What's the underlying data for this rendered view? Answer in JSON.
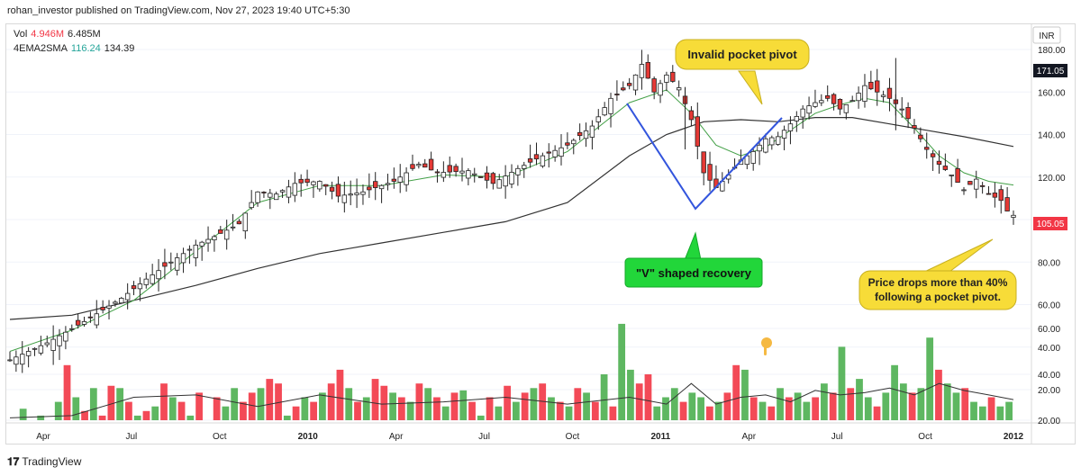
{
  "header": {
    "published": "rohan_investor published on TradingView.com, Nov 27, 2023 19:40 UTC+5:30"
  },
  "legend": {
    "vol_label": "Vol",
    "vol_value": "4.946M",
    "vol_ma": "6.485M",
    "ma_label": "4EMA2SMA",
    "ma_short": "116.24",
    "ma_long": "134.39"
  },
  "price_axis": {
    "currency": "INR"
  },
  "footer": {
    "brand": "TradingView"
  },
  "colors": {
    "up": "#4caf50",
    "down": "#f23645",
    "ema": "#43a047",
    "sma": "#333333",
    "annotation": "#f7dc38",
    "recovery": "#22d63a",
    "v_line": "#3355dd"
  },
  "chart_data": {
    "type": "candlestick",
    "title": "",
    "price_axis": {
      "range": [
        15,
        180
      ],
      "ticks": [
        20,
        40,
        60,
        80,
        100,
        120,
        140,
        160,
        180
      ],
      "current_price": 105.05,
      "marked_high": 171.05
    },
    "time_axis": {
      "labels": [
        "Apr",
        "Jul",
        "Oct",
        "2010",
        "Apr",
        "Jul",
        "Oct",
        "2011",
        "Apr",
        "Jul",
        "Oct",
        "2012"
      ],
      "bold": [
        "2010",
        "2011",
        "2012"
      ]
    },
    "close_path": [
      [
        0,
        34
      ],
      [
        6,
        42
      ],
      [
        12,
        52
      ],
      [
        18,
        63
      ],
      [
        22,
        72
      ],
      [
        26,
        80
      ],
      [
        30,
        88
      ],
      [
        33,
        92
      ],
      [
        37,
        98
      ],
      [
        40,
        113
      ],
      [
        43,
        112
      ],
      [
        46,
        117
      ],
      [
        50,
        118
      ],
      [
        53,
        111
      ],
      [
        57,
        113
      ],
      [
        62,
        118
      ],
      [
        66,
        126
      ],
      [
        69,
        122
      ],
      [
        74,
        123
      ],
      [
        78,
        117
      ],
      [
        82,
        124
      ],
      [
        86,
        130
      ],
      [
        90,
        135
      ],
      [
        94,
        144
      ],
      [
        97,
        157
      ],
      [
        100,
        163
      ],
      [
        102,
        173
      ],
      [
        104,
        160
      ],
      [
        106,
        168
      ],
      [
        108,
        162
      ],
      [
        110,
        147
      ],
      [
        112,
        122
      ],
      [
        114,
        115
      ],
      [
        116,
        121
      ],
      [
        118,
        128
      ],
      [
        120,
        132
      ],
      [
        122,
        138
      ],
      [
        124,
        139
      ],
      [
        126,
        145
      ],
      [
        128,
        152
      ],
      [
        130,
        155
      ],
      [
        132,
        157
      ],
      [
        134,
        152
      ],
      [
        136,
        156
      ],
      [
        138,
        163
      ],
      [
        140,
        160
      ],
      [
        142,
        157
      ],
      [
        144,
        152
      ],
      [
        146,
        143
      ],
      [
        148,
        133
      ],
      [
        150,
        126
      ],
      [
        152,
        121
      ],
      [
        154,
        114
      ],
      [
        156,
        119
      ],
      [
        158,
        112
      ],
      [
        160,
        109
      ],
      [
        161,
        104
      ],
      [
        162,
        102
      ]
    ],
    "ema_series": [
      [
        0,
        38
      ],
      [
        10,
        48
      ],
      [
        20,
        62
      ],
      [
        30,
        85
      ],
      [
        40,
        108
      ],
      [
        50,
        116
      ],
      [
        60,
        116
      ],
      [
        70,
        121
      ],
      [
        80,
        120
      ],
      [
        90,
        132
      ],
      [
        100,
        155
      ],
      [
        106,
        161
      ],
      [
        110,
        150
      ],
      [
        114,
        135
      ],
      [
        118,
        130
      ],
      [
        122,
        134
      ],
      [
        126,
        142
      ],
      [
        130,
        150
      ],
      [
        134,
        154
      ],
      [
        138,
        157
      ],
      [
        142,
        155
      ],
      [
        146,
        143
      ],
      [
        150,
        130
      ],
      [
        154,
        122
      ],
      [
        158,
        118
      ],
      [
        162,
        116.24
      ]
    ],
    "sma_series": [
      [
        0,
        53
      ],
      [
        10,
        55
      ],
      [
        20,
        62
      ],
      [
        30,
        69
      ],
      [
        40,
        77
      ],
      [
        50,
        84
      ],
      [
        60,
        89
      ],
      [
        70,
        94
      ],
      [
        80,
        99
      ],
      [
        90,
        108
      ],
      [
        100,
        130
      ],
      [
        106,
        140
      ],
      [
        112,
        146
      ],
      [
        118,
        147
      ],
      [
        124,
        146
      ],
      [
        130,
        148
      ],
      [
        136,
        148
      ],
      [
        142,
        145
      ],
      [
        148,
        142
      ],
      [
        154,
        139
      ],
      [
        162,
        134.39
      ]
    ],
    "volume_axis": {
      "range": [
        18,
        68
      ],
      "ticks": [
        20,
        40,
        60
      ]
    },
    "volume_bars": [
      [
        10,
        0
      ],
      [
        25,
        1
      ],
      [
        18,
        0
      ],
      [
        22,
        1
      ],
      [
        20,
        0
      ],
      [
        28,
        1
      ],
      [
        44,
        0
      ],
      [
        30,
        1
      ],
      [
        24,
        0
      ],
      [
        34,
        1
      ],
      [
        22,
        0
      ],
      [
        35,
        0
      ],
      [
        34,
        1
      ],
      [
        28,
        0
      ],
      [
        22,
        1
      ],
      [
        24,
        0
      ],
      [
        26,
        1
      ],
      [
        36,
        0
      ],
      [
        30,
        1
      ],
      [
        28,
        0
      ],
      [
        22,
        1
      ],
      [
        32,
        0
      ],
      [
        20,
        1
      ],
      [
        30,
        0
      ],
      [
        26,
        1
      ],
      [
        34,
        1
      ],
      [
        28,
        0
      ],
      [
        32,
        0
      ],
      [
        34,
        1
      ],
      [
        38,
        0
      ],
      [
        36,
        0
      ],
      [
        22,
        1
      ],
      [
        26,
        0
      ],
      [
        30,
        1
      ],
      [
        28,
        0
      ],
      [
        32,
        1
      ],
      [
        36,
        0
      ],
      [
        42,
        0
      ],
      [
        34,
        1
      ],
      [
        28,
        0
      ],
      [
        30,
        1
      ],
      [
        38,
        0
      ],
      [
        35,
        0
      ],
      [
        32,
        1
      ],
      [
        30,
        0
      ],
      [
        28,
        1
      ],
      [
        36,
        0
      ],
      [
        34,
        1
      ],
      [
        30,
        0
      ],
      [
        26,
        1
      ],
      [
        32,
        0
      ],
      [
        33,
        1
      ],
      [
        28,
        0
      ],
      [
        22,
        1
      ],
      [
        30,
        0
      ],
      [
        26,
        1
      ],
      [
        35,
        0
      ],
      [
        28,
        1
      ],
      [
        32,
        0
      ],
      [
        34,
        1
      ],
      [
        36,
        0
      ],
      [
        30,
        1
      ],
      [
        28,
        0
      ],
      [
        26,
        1
      ],
      [
        34,
        0
      ],
      [
        32,
        1
      ],
      [
        28,
        0
      ],
      [
        40,
        1
      ],
      [
        26,
        0
      ],
      [
        62,
        1
      ],
      [
        42,
        1
      ],
      [
        36,
        0
      ],
      [
        40,
        0
      ],
      [
        26,
        1
      ],
      [
        30,
        1
      ],
      [
        34,
        1
      ],
      [
        28,
        0
      ],
      [
        32,
        1
      ],
      [
        30,
        1
      ],
      [
        26,
        0
      ],
      [
        28,
        1
      ],
      [
        32,
        0
      ],
      [
        44,
        0
      ],
      [
        42,
        1
      ],
      [
        30,
        0
      ],
      [
        28,
        1
      ],
      [
        26,
        0
      ],
      [
        34,
        1
      ],
      [
        30,
        0
      ],
      [
        32,
        1
      ],
      [
        28,
        1
      ],
      [
        30,
        0
      ],
      [
        36,
        1
      ],
      [
        32,
        0
      ],
      [
        52,
        1
      ],
      [
        34,
        0
      ],
      [
        38,
        1
      ],
      [
        30,
        1
      ],
      [
        26,
        0
      ],
      [
        32,
        1
      ],
      [
        44,
        1
      ],
      [
        36,
        1
      ],
      [
        32,
        0
      ],
      [
        34,
        1
      ],
      [
        56,
        1
      ],
      [
        42,
        0
      ],
      [
        36,
        1
      ],
      [
        32,
        1
      ],
      [
        34,
        0
      ],
      [
        28,
        1
      ],
      [
        26,
        1
      ],
      [
        30,
        0
      ],
      [
        26,
        1
      ],
      [
        28,
        1
      ]
    ],
    "volume_ma": [
      [
        0,
        21
      ],
      [
        10,
        22
      ],
      [
        20,
        30
      ],
      [
        30,
        31
      ],
      [
        40,
        26
      ],
      [
        50,
        31
      ],
      [
        60,
        27
      ],
      [
        70,
        28
      ],
      [
        80,
        30
      ],
      [
        90,
        27
      ],
      [
        100,
        30
      ],
      [
        106,
        27
      ],
      [
        110,
        36
      ],
      [
        114,
        27
      ],
      [
        118,
        30
      ],
      [
        122,
        31
      ],
      [
        126,
        28
      ],
      [
        130,
        33
      ],
      [
        134,
        31
      ],
      [
        138,
        32
      ],
      [
        142,
        34
      ],
      [
        146,
        31
      ],
      [
        150,
        36
      ],
      [
        154,
        33
      ],
      [
        158,
        31
      ],
      [
        162,
        29
      ]
    ],
    "annotations": [
      {
        "text": "Invalid pocket pivot"
      },
      {
        "text": "\"V\" shaped recovery"
      },
      {
        "text": "Price drops more than 40%",
        "text2": "following a pocket pivot."
      }
    ]
  }
}
